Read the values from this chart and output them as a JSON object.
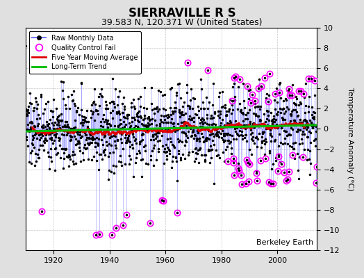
{
  "title": "SIERRAVILLE R S",
  "subtitle": "39.583 N, 120.371 W (United States)",
  "ylabel": "Temperature Anomaly (°C)",
  "attribution": "Berkeley Earth",
  "year_start": 1910,
  "year_end": 2014,
  "ylim": [
    -12,
    10
  ],
  "yticks": [
    -12,
    -10,
    -8,
    -6,
    -4,
    -2,
    0,
    2,
    4,
    6,
    8,
    10
  ],
  "xticks": [
    1920,
    1940,
    1960,
    1980,
    2000
  ],
  "background_color": "#e0e0e0",
  "plot_bg_color": "#ffffff",
  "grid_color": "#b0b0b0",
  "raw_line_color": "#7777ff",
  "raw_dot_color": "#000000",
  "qc_fail_color": "#ff00ff",
  "moving_avg_color": "#dd0000",
  "trend_color": "#00bb00",
  "long_term_trend_slope": 0.006,
  "long_term_trend_intercept": -0.25,
  "seed": 137
}
